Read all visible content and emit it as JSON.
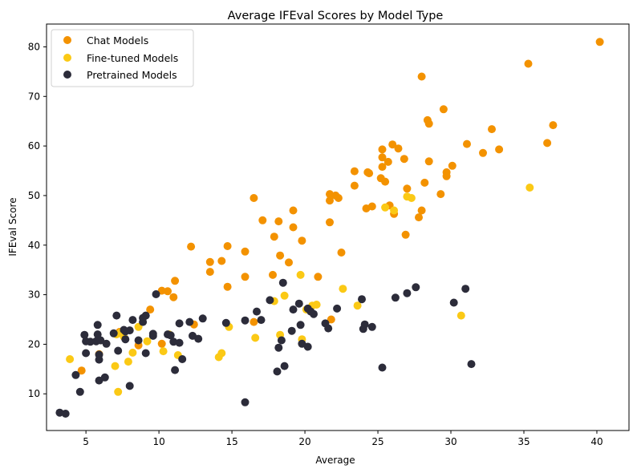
{
  "chart_data": {
    "type": "scatter",
    "title": "Average IFEval Scores by Model Type",
    "xlabel": "Average",
    "ylabel": "IFEval Score",
    "xlim": [
      2.3,
      42.2
    ],
    "ylim": [
      2.6,
      84.6
    ],
    "xticks": [
      5,
      10,
      15,
      20,
      25,
      30,
      35,
      40
    ],
    "yticks": [
      10,
      20,
      30,
      40,
      50,
      60,
      70,
      80
    ],
    "legend_position": "top-left",
    "grid": false,
    "series": [
      {
        "name": "Chat Models",
        "color": "#f39200",
        "points": [
          [
            4.7,
            14.7
          ],
          [
            5.9,
            18.0
          ],
          [
            7.3,
            22.5
          ],
          [
            8.6,
            19.8
          ],
          [
            9.4,
            27.0
          ],
          [
            10.2,
            20.1
          ],
          [
            10.6,
            30.7
          ],
          [
            10.2,
            30.8
          ],
          [
            11.1,
            32.8
          ],
          [
            11.0,
            29.5
          ],
          [
            12.2,
            39.7
          ],
          [
            12.4,
            24.0
          ],
          [
            13.5,
            36.6
          ],
          [
            13.5,
            34.6
          ],
          [
            14.3,
            36.8
          ],
          [
            14.7,
            39.8
          ],
          [
            14.7,
            31.6
          ],
          [
            15.9,
            38.7
          ],
          [
            15.9,
            33.6
          ],
          [
            16.5,
            49.5
          ],
          [
            16.5,
            24.5
          ],
          [
            17.1,
            45.0
          ],
          [
            17.9,
            41.7
          ],
          [
            17.8,
            34.0
          ],
          [
            18.2,
            44.8
          ],
          [
            18.3,
            37.9
          ],
          [
            18.9,
            36.5
          ],
          [
            19.2,
            47.0
          ],
          [
            19.2,
            43.6
          ],
          [
            19.8,
            40.9
          ],
          [
            20.9,
            33.6
          ],
          [
            21.7,
            50.3
          ],
          [
            21.7,
            49.0
          ],
          [
            21.7,
            44.6
          ],
          [
            21.8,
            25.0
          ],
          [
            22.1,
            50.0
          ],
          [
            22.3,
            49.5
          ],
          [
            22.5,
            38.5
          ],
          [
            23.4,
            54.9
          ],
          [
            23.4,
            52.0
          ],
          [
            24.2,
            47.4
          ],
          [
            24.3,
            54.7
          ],
          [
            24.4,
            54.5
          ],
          [
            24.6,
            47.8
          ],
          [
            25.3,
            59.3
          ],
          [
            25.3,
            57.7
          ],
          [
            25.3,
            55.8
          ],
          [
            25.2,
            53.5
          ],
          [
            25.5,
            52.8
          ],
          [
            25.7,
            56.8
          ],
          [
            25.8,
            48.0
          ],
          [
            26.0,
            60.3
          ],
          [
            26.1,
            46.3
          ],
          [
            26.4,
            59.5
          ],
          [
            26.8,
            57.4
          ],
          [
            26.9,
            42.1
          ],
          [
            27.0,
            51.4
          ],
          [
            27.8,
            45.6
          ],
          [
            28.0,
            47.0
          ],
          [
            28.0,
            74.0
          ],
          [
            28.2,
            52.6
          ],
          [
            28.4,
            65.2
          ],
          [
            28.5,
            64.5
          ],
          [
            28.5,
            56.9
          ],
          [
            29.3,
            50.3
          ],
          [
            29.5,
            67.4
          ],
          [
            29.7,
            54.7
          ],
          [
            29.7,
            53.9
          ],
          [
            30.1,
            56.0
          ],
          [
            31.1,
            60.4
          ],
          [
            32.2,
            58.6
          ],
          [
            32.8,
            63.4
          ],
          [
            33.3,
            59.3
          ],
          [
            35.3,
            76.6
          ],
          [
            36.6,
            60.6
          ],
          [
            37.0,
            64.2
          ],
          [
            40.2,
            81.0
          ]
        ]
      },
      {
        "name": "Fine-tuned Models",
        "color": "#fbc915",
        "points": [
          [
            3.9,
            17.0
          ],
          [
            7.0,
            15.6
          ],
          [
            7.1,
            22.0
          ],
          [
            7.2,
            10.4
          ],
          [
            7.4,
            22.4
          ],
          [
            7.6,
            21.5
          ],
          [
            7.9,
            16.5
          ],
          [
            8.2,
            18.3
          ],
          [
            8.6,
            23.5
          ],
          [
            9.2,
            20.6
          ],
          [
            10.3,
            18.6
          ],
          [
            10.7,
            22.0
          ],
          [
            11.3,
            17.8
          ],
          [
            14.1,
            17.4
          ],
          [
            14.3,
            18.2
          ],
          [
            14.8,
            23.5
          ],
          [
            16.6,
            21.3
          ],
          [
            17.9,
            28.7
          ],
          [
            18.3,
            21.9
          ],
          [
            18.6,
            29.8
          ],
          [
            19.7,
            34.0
          ],
          [
            19.8,
            21.0
          ],
          [
            20.1,
            27.0
          ],
          [
            20.5,
            27.8
          ],
          [
            20.8,
            28.0
          ],
          [
            22.6,
            31.2
          ],
          [
            23.6,
            27.8
          ],
          [
            25.5,
            47.6
          ],
          [
            26.1,
            47.0
          ],
          [
            27.0,
            49.8
          ],
          [
            27.3,
            49.5
          ],
          [
            30.7,
            25.8
          ],
          [
            35.4,
            51.6
          ]
        ]
      },
      {
        "name": "Pretrained Models",
        "color": "#2c2c3a",
        "points": [
          [
            3.2,
            6.2
          ],
          [
            3.6,
            6.0
          ],
          [
            4.3,
            13.8
          ],
          [
            4.6,
            10.4
          ],
          [
            4.9,
            21.9
          ],
          [
            5.0,
            20.6
          ],
          [
            5.0,
            18.2
          ],
          [
            5.3,
            20.5
          ],
          [
            5.7,
            20.6
          ],
          [
            5.8,
            23.9
          ],
          [
            5.8,
            22.0
          ],
          [
            5.9,
            17.9
          ],
          [
            5.9,
            16.9
          ],
          [
            5.9,
            12.7
          ],
          [
            6.0,
            20.8
          ],
          [
            6.3,
            13.3
          ],
          [
            6.4,
            20.1
          ],
          [
            6.9,
            22.2
          ],
          [
            7.1,
            25.8
          ],
          [
            7.2,
            18.7
          ],
          [
            7.6,
            22.9
          ],
          [
            7.7,
            22.6
          ],
          [
            7.7,
            21.0
          ],
          [
            8.0,
            22.8
          ],
          [
            8.0,
            11.6
          ],
          [
            8.2,
            24.9
          ],
          [
            8.6,
            20.8
          ],
          [
            8.9,
            25.3
          ],
          [
            8.9,
            24.5
          ],
          [
            9.1,
            25.8
          ],
          [
            9.1,
            18.2
          ],
          [
            9.6,
            22.1
          ],
          [
            9.6,
            21.7
          ],
          [
            9.8,
            30.1
          ],
          [
            10.6,
            22.0
          ],
          [
            10.8,
            21.8
          ],
          [
            11.0,
            20.5
          ],
          [
            11.1,
            14.8
          ],
          [
            11.4,
            24.2
          ],
          [
            11.4,
            20.3
          ],
          [
            11.6,
            17.0
          ],
          [
            12.1,
            24.5
          ],
          [
            12.3,
            21.7
          ],
          [
            12.7,
            21.1
          ],
          [
            13.0,
            25.2
          ],
          [
            14.6,
            24.3
          ],
          [
            15.9,
            24.8
          ],
          [
            15.9,
            8.3
          ],
          [
            16.7,
            26.6
          ],
          [
            17.0,
            24.9
          ],
          [
            17.6,
            28.9
          ],
          [
            18.1,
            14.5
          ],
          [
            18.2,
            19.3
          ],
          [
            18.4,
            20.8
          ],
          [
            18.5,
            32.4
          ],
          [
            18.6,
            15.6
          ],
          [
            19.1,
            22.7
          ],
          [
            19.2,
            27.0
          ],
          [
            19.6,
            28.2
          ],
          [
            19.7,
            23.9
          ],
          [
            19.8,
            20.1
          ],
          [
            20.2,
            19.5
          ],
          [
            20.2,
            27.2
          ],
          [
            20.4,
            26.6
          ],
          [
            20.6,
            26.1
          ],
          [
            21.4,
            24.2
          ],
          [
            21.6,
            23.2
          ],
          [
            22.2,
            27.2
          ],
          [
            23.9,
            29.1
          ],
          [
            24.0,
            23.1
          ],
          [
            24.1,
            24.0
          ],
          [
            24.6,
            23.5
          ],
          [
            25.3,
            15.3
          ],
          [
            26.2,
            29.4
          ],
          [
            27.0,
            30.3
          ],
          [
            27.6,
            31.5
          ],
          [
            30.2,
            28.4
          ],
          [
            31.0,
            31.2
          ],
          [
            31.4,
            16.0
          ]
        ]
      }
    ]
  }
}
